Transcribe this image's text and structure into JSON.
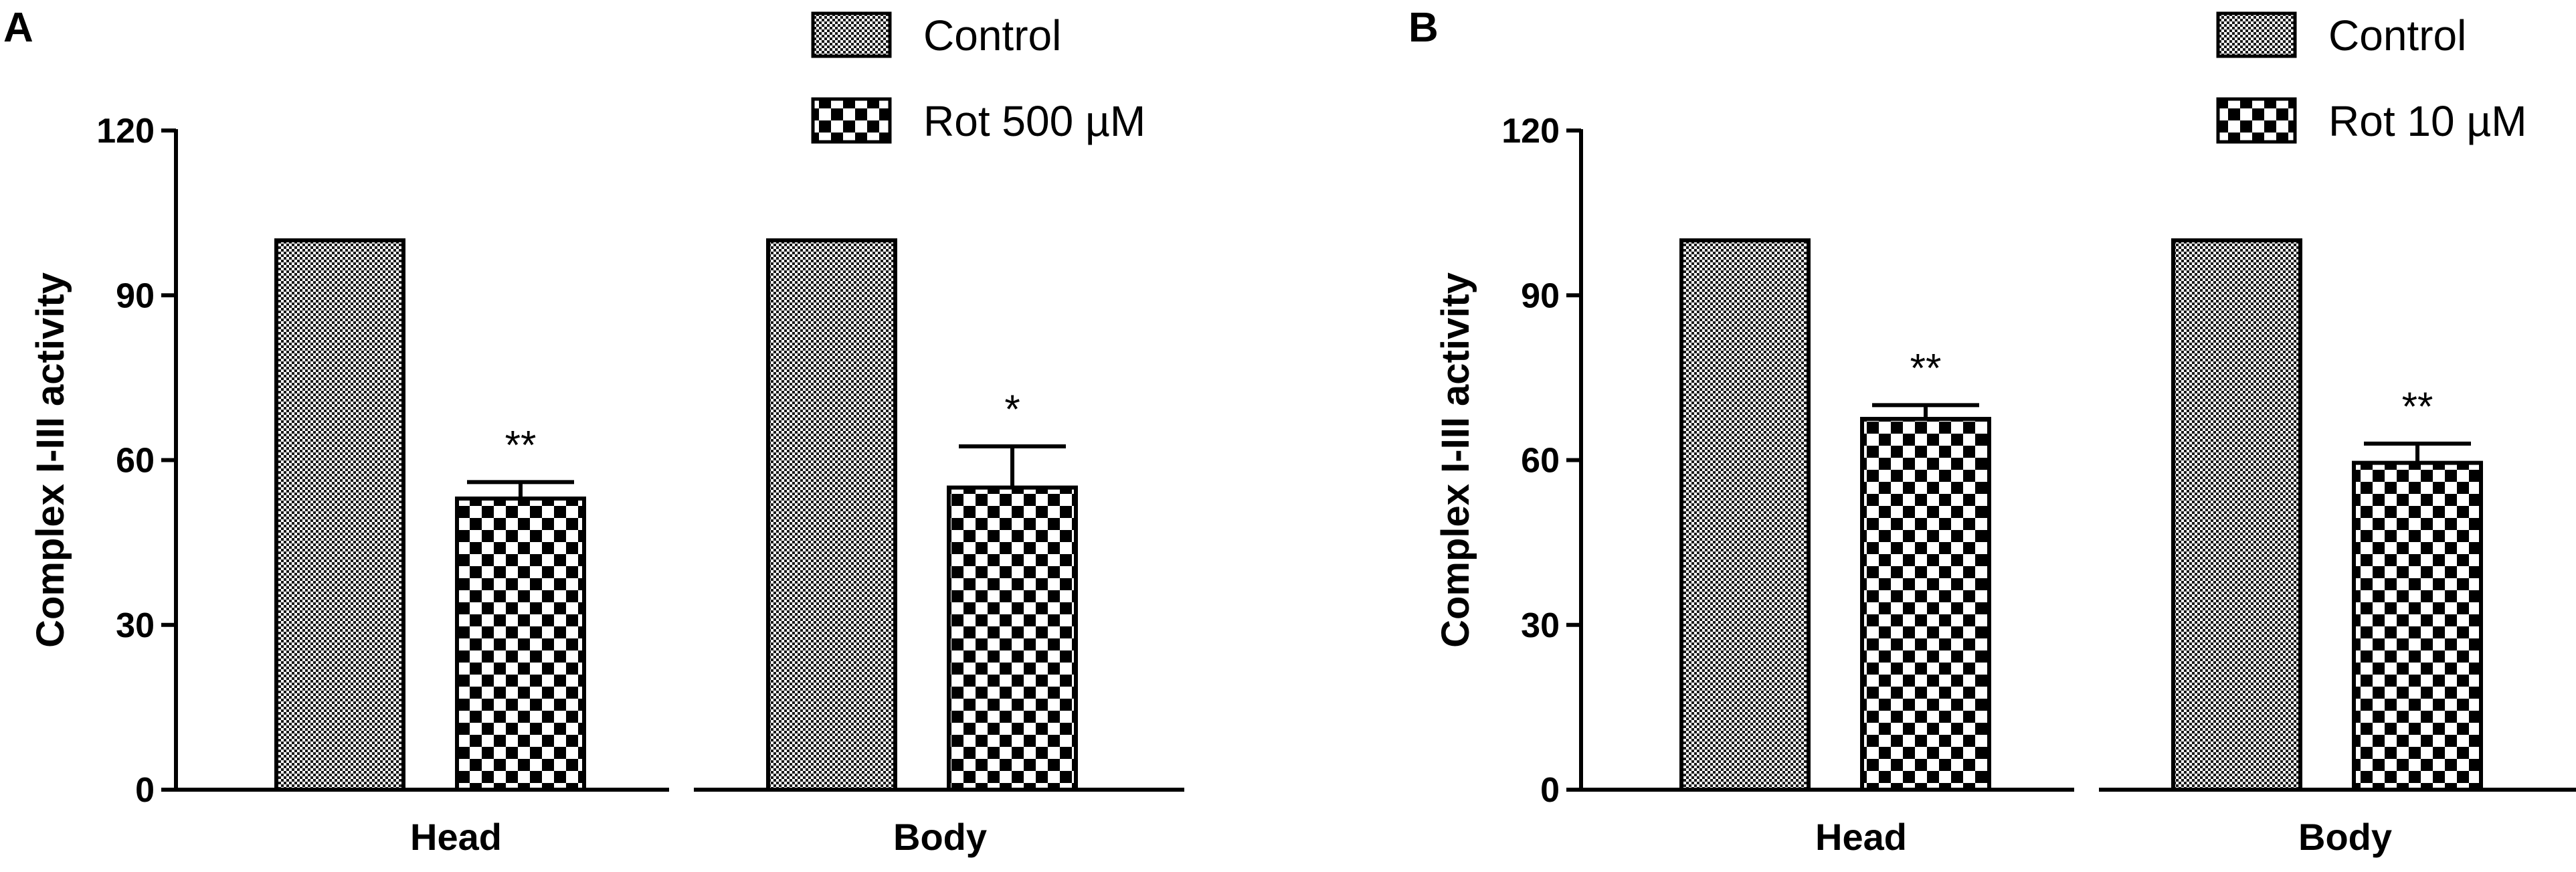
{
  "panels": [
    {
      "letter": "A",
      "legend": [
        {
          "label": "Control",
          "pattern": "fine"
        },
        {
          "label": "Rot 500 µM",
          "pattern": "coarse"
        }
      ]
    },
    {
      "letter": "B",
      "legend": [
        {
          "label": "Control",
          "pattern": "fine"
        },
        {
          "label": "Rot 10 µM",
          "pattern": "coarse"
        }
      ]
    }
  ],
  "chart_data": [
    {
      "type": "bar",
      "title": "",
      "xlabel": "",
      "ylabel": "Complex I-III activity",
      "ylim": [
        0,
        120
      ],
      "yticks": [
        0,
        30,
        60,
        90,
        120
      ],
      "grid": false,
      "legend_placement": "top-right",
      "groups": [
        "Head",
        "Body"
      ],
      "series": [
        {
          "name": "Control",
          "values": [
            100,
            100
          ],
          "errors": [
            0.5,
            0.5
          ],
          "significance": [
            "",
            ""
          ]
        },
        {
          "name": "Rot 500 µM",
          "values": [
            53,
            55
          ],
          "errors": [
            3,
            7.5
          ],
          "significance": [
            "**",
            "*"
          ]
        }
      ]
    },
    {
      "type": "bar",
      "title": "",
      "xlabel": "",
      "ylabel": "Complex I-III activity",
      "ylim": [
        0,
        120
      ],
      "yticks": [
        0,
        30,
        60,
        90,
        120
      ],
      "grid": false,
      "legend_placement": "top-right",
      "groups": [
        "Head",
        "Body"
      ],
      "series": [
        {
          "name": "Control",
          "values": [
            100,
            100
          ],
          "errors": [
            0.5,
            0.5
          ],
          "significance": [
            "",
            ""
          ]
        },
        {
          "name": "Rot 10 µM",
          "values": [
            67.5,
            59.5
          ],
          "errors": [
            2.5,
            3.5
          ],
          "significance": [
            "**",
            "**"
          ]
        }
      ]
    }
  ]
}
